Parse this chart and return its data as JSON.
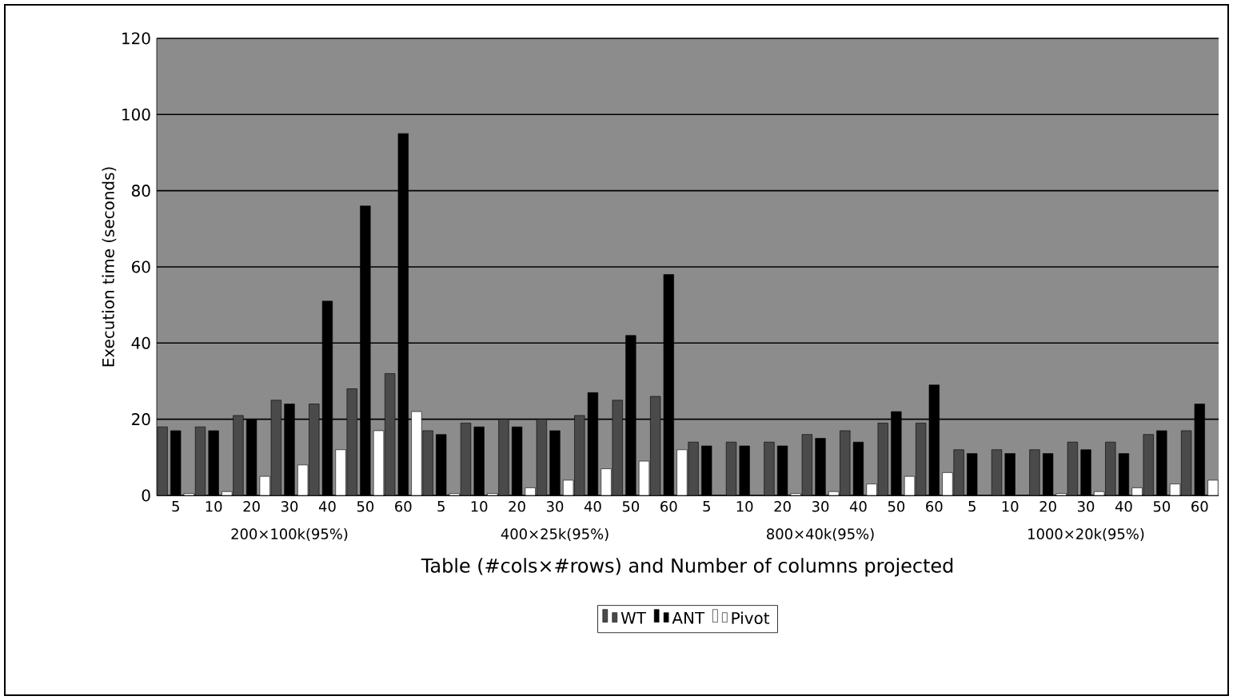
{
  "chart_data": {
    "type": "bar",
    "xlabel": "Table (#cols×#rows) and Number of columns projected",
    "ylabel": "Execution time (seconds)",
    "categories": [
      "5",
      "10",
      "20",
      "30",
      "40",
      "50",
      "60",
      "5",
      "10",
      "20",
      "30",
      "40",
      "50",
      "60",
      "5",
      "10",
      "20",
      "30",
      "40",
      "50",
      "60",
      "5",
      "10",
      "20",
      "30",
      "40",
      "50",
      "60"
    ],
    "series": [
      {
        "name": "WT",
        "color": "#4a4a4a",
        "values": [
          18,
          18,
          21,
          25,
          24,
          28,
          32,
          17,
          19,
          20,
          20,
          21,
          25,
          26,
          14,
          14,
          14,
          16,
          17,
          19,
          19,
          12,
          12,
          12,
          14,
          14,
          16,
          17
        ]
      },
      {
        "name": "ANT",
        "color": "#000000",
        "values": [
          17,
          17,
          20,
          24,
          51,
          76,
          95,
          16,
          18,
          18,
          17,
          27,
          42,
          58,
          13,
          13,
          13,
          15,
          14,
          22,
          29,
          11,
          11,
          11,
          12,
          11,
          17,
          24
        ]
      },
      {
        "name": "Pivot",
        "color": "#ffffff",
        "values": [
          0.5,
          1,
          5,
          8,
          12,
          17,
          22,
          0.5,
          0.5,
          2,
          4,
          7,
          9,
          12,
          null,
          null,
          0.5,
          1,
          3,
          5,
          6,
          null,
          null,
          0.5,
          1,
          2,
          3,
          4
        ]
      }
    ],
    "annotations": [
      "200×100k(95%)",
      "400×25k(95%)",
      "800×40k(95%)",
      "1000×20k(95%)"
    ],
    "ylim": [
      0,
      120
    ],
    "yticks": [
      0,
      20,
      40,
      60,
      80,
      100,
      120
    ],
    "grid": "y",
    "legend": "bottom"
  }
}
